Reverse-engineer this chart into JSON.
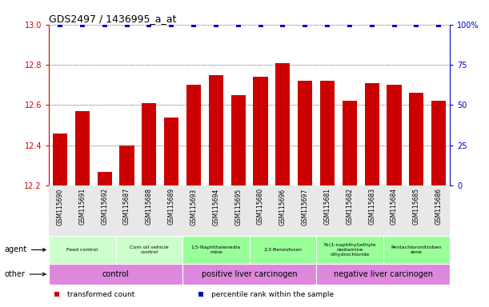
{
  "title": "GDS2497 / 1436995_a_at",
  "samples": [
    "GSM115690",
    "GSM115691",
    "GSM115692",
    "GSM115687",
    "GSM115688",
    "GSM115689",
    "GSM115693",
    "GSM115694",
    "GSM115695",
    "GSM115680",
    "GSM115696",
    "GSM115697",
    "GSM115681",
    "GSM115682",
    "GSM115683",
    "GSM115684",
    "GSM115685",
    "GSM115686"
  ],
  "bar_values": [
    12.46,
    12.57,
    12.27,
    12.4,
    12.61,
    12.54,
    12.7,
    12.75,
    12.65,
    12.74,
    12.81,
    12.72,
    12.72,
    12.62,
    12.71,
    12.7,
    12.66,
    12.62
  ],
  "percentile_values": [
    100,
    100,
    100,
    100,
    100,
    100,
    100,
    100,
    100,
    100,
    100,
    100,
    100,
    100,
    100,
    100,
    100,
    100
  ],
  "ylim_left": [
    12.2,
    13.0
  ],
  "ylim_right": [
    0,
    100
  ],
  "yticks_left": [
    12.2,
    12.4,
    12.6,
    12.8,
    13.0
  ],
  "yticks_right": [
    0,
    25,
    50,
    75,
    100
  ],
  "bar_color": "#cc0000",
  "percentile_color": "#0000cc",
  "agent_groups": [
    {
      "label": "Feed control",
      "start": 0,
      "end": 3,
      "color": "#ccffcc"
    },
    {
      "label": "Corn oil vehicle\ncontrol",
      "start": 3,
      "end": 6,
      "color": "#ccffcc"
    },
    {
      "label": "1,5-Naphthalenedia\nmine",
      "start": 6,
      "end": 9,
      "color": "#99ff99"
    },
    {
      "label": "2,3-Benzofuran",
      "start": 9,
      "end": 12,
      "color": "#99ff99"
    },
    {
      "label": "N-(1-naphthyl)ethyle\nnediamine\ndihydrochloride",
      "start": 12,
      "end": 15,
      "color": "#99ff99"
    },
    {
      "label": "Pentachloronitroben\nzene",
      "start": 15,
      "end": 18,
      "color": "#99ff99"
    }
  ],
  "other_groups": [
    {
      "label": "control",
      "start": 0,
      "end": 6,
      "color": "#dd88dd"
    },
    {
      "label": "positive liver carcinogen",
      "start": 6,
      "end": 12,
      "color": "#dd88dd"
    },
    {
      "label": "negative liver carcinogen",
      "start": 12,
      "end": 18,
      "color": "#dd88dd"
    }
  ],
  "legend_items": [
    {
      "label": "transformed count",
      "color": "#cc0000"
    },
    {
      "label": "percentile rank within the sample",
      "color": "#0000cc"
    }
  ],
  "left_axis_color": "#cc0000",
  "right_axis_color": "#0000cc",
  "bg_color": "#ffffff"
}
